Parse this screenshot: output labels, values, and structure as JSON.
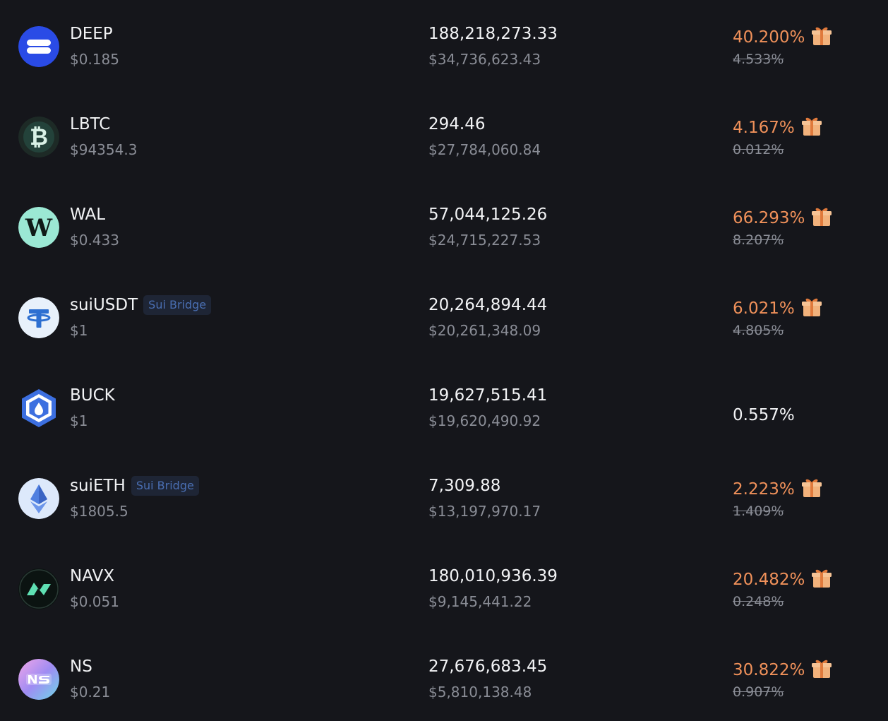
{
  "assets": [
    {
      "symbol": "DEEP",
      "price": "$0.185",
      "amount": "188,218,273.33",
      "value": "$34,736,623.43",
      "apy": "40.200%",
      "base_apy": "4.533%",
      "icon": "deep-logo-icon"
    },
    {
      "symbol": "LBTC",
      "price": "$94354.3",
      "amount": "294.46",
      "value": "$27,784,060.84",
      "apy": "4.167%",
      "base_apy": "0.012%",
      "icon": "lbtc-logo-icon"
    },
    {
      "symbol": "WAL",
      "price": "$0.433",
      "amount": "57,044,125.26",
      "value": "$24,715,227.53",
      "apy": "66.293%",
      "base_apy": "8.207%",
      "icon": "wal-logo-icon"
    },
    {
      "symbol": "suiUSDT",
      "badge": "Sui Bridge",
      "price": "$1",
      "amount": "20,264,894.44",
      "value": "$20,261,348.09",
      "apy": "6.021%",
      "base_apy": "4.805%",
      "icon": "usdt-logo-icon"
    },
    {
      "symbol": "BUCK",
      "price": "$1",
      "amount": "19,627,515.41",
      "value": "$19,620,490.92",
      "apy": "0.557%",
      "icon": "buck-logo-icon"
    },
    {
      "symbol": "suiETH",
      "badge": "Sui Bridge",
      "price": "$1805.5",
      "amount": "7,309.88",
      "value": "$13,197,970.17",
      "apy": "2.223%",
      "base_apy": "1.409%",
      "icon": "eth-logo-icon"
    },
    {
      "symbol": "NAVX",
      "price": "$0.051",
      "amount": "180,010,936.39",
      "value": "$9,145,441.22",
      "apy": "20.482%",
      "base_apy": "0.248%",
      "icon": "navx-logo-icon"
    },
    {
      "symbol": "NS",
      "price": "$0.21",
      "amount": "27,676,683.45",
      "value": "$5,810,138.48",
      "apy": "30.822%",
      "base_apy": "0.907%",
      "icon": "ns-logo-icon"
    }
  ],
  "colors": {
    "background": "#15161b",
    "primary_text": "#f2f3f5",
    "secondary_text": "#8a8d96",
    "boosted_apy": "#f0915a",
    "badge_text": "#4a6fb3",
    "badge_bg": "#1e2535"
  },
  "reward_icon": "gift-icon"
}
